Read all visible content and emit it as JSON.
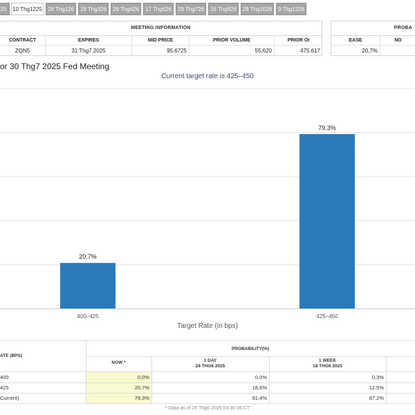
{
  "tabs": [
    {
      "label": "25",
      "active": false
    },
    {
      "label": "10 Thg1225",
      "active": true
    },
    {
      "label": "28 Thg126",
      "active": false
    },
    {
      "label": "18 Thg326",
      "active": false
    },
    {
      "label": "29 Thg426",
      "active": false
    },
    {
      "label": "17 Thg626",
      "active": false
    },
    {
      "label": "29 Thg726",
      "active": false
    },
    {
      "label": "16 Thg926",
      "active": false
    },
    {
      "label": "28 Thg1026",
      "active": false
    },
    {
      "label": "9 Thg1226",
      "active": false
    }
  ],
  "meeting_info": {
    "title": "MEETING INFORMATION",
    "headers": [
      "CONTRACT",
      "EXPIRES",
      "MID PRICE",
      "PRIOR VOLUME",
      "PRIOR OI"
    ],
    "values": [
      "ZQN5",
      "31 Thg7 2025",
      "95,6725",
      "55,620",
      "475.617"
    ]
  },
  "probability_panel": {
    "title": "PROBA",
    "headers": [
      "EASE",
      "NO"
    ],
    "values": [
      "20,7%",
      ""
    ]
  },
  "chart": {
    "title": "or 30 Thg7 2025 Fed Meeting",
    "subtitle": "Current target rate is 425–450"
  },
  "chart_data": {
    "type": "bar",
    "categories": [
      "400–425",
      "425–450"
    ],
    "values": [
      20.7,
      79.3
    ],
    "data_labels": [
      "20.7%",
      "79.3%"
    ],
    "xlabel": "Target Rate (in bps)",
    "ylabel": "",
    "ylim": [
      0,
      100
    ],
    "grid": true,
    "bar_color": "#2b7bba"
  },
  "prob_table": {
    "rate_header": "ATE (BPS)",
    "prob_header": "PROBABILITY(%)",
    "columns": [
      {
        "line1": "NOW *",
        "line2": ""
      },
      {
        "line1": "1 DAY",
        "line2": "24 THG6 2025"
      },
      {
        "line1": "1 WEEK",
        "line2": "18 THG6 2025"
      }
    ],
    "rows": [
      {
        "rate": "400",
        "now": "0,0%",
        "day": "0,0%",
        "week": "0,3%"
      },
      {
        "rate": "425",
        "now": "20,7%",
        "day": "18,6%",
        "week": "12,5%"
      },
      {
        "rate": "Current)",
        "now": "79,3%",
        "day": "81,4%",
        "week": "87,2%"
      }
    ],
    "footnote": "* Data as of 25 Thg6 2025 03:30:26 CT"
  },
  "colors": {
    "tab_bg": "#a6a6a6",
    "now_highlight": "#fafad2",
    "bar": "#2b7bba"
  }
}
